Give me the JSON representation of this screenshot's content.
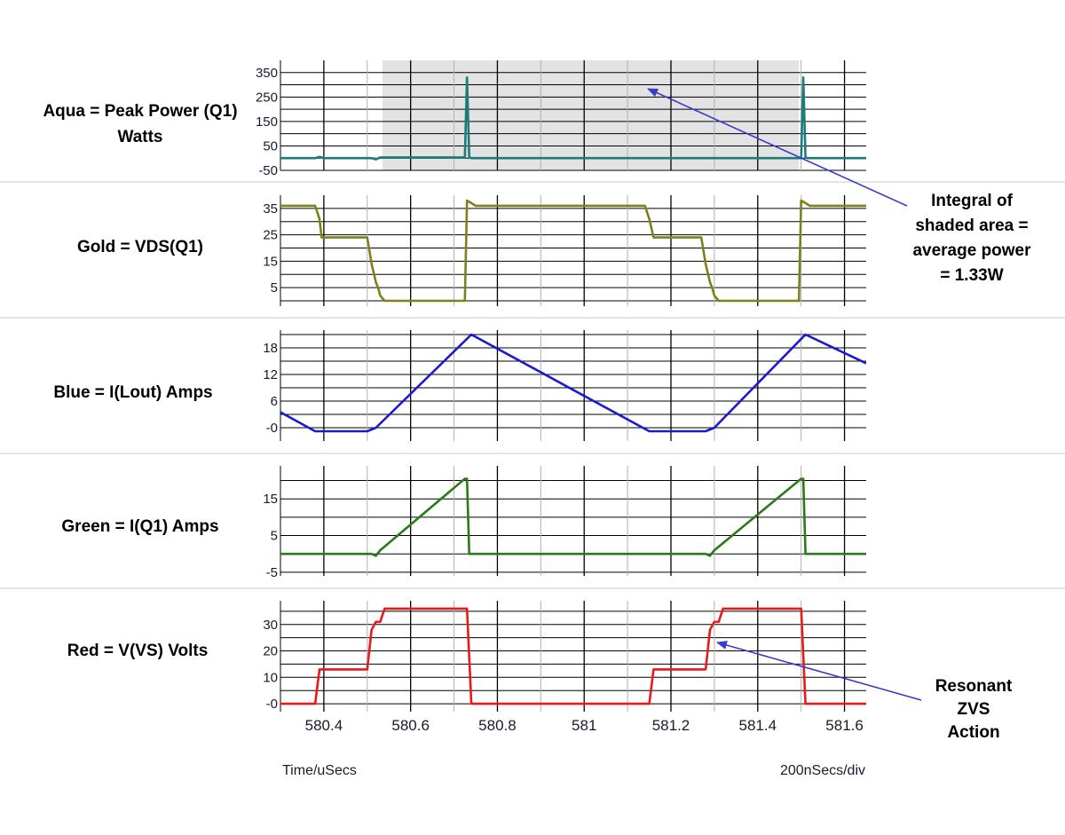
{
  "chart_data": {
    "type": "line",
    "x_range": [
      580.3,
      581.65
    ],
    "x_ticks": [
      "580.4",
      "580.6",
      "580.8",
      "581",
      "581.2",
      "581.4",
      "581.6"
    ],
    "x_tick_values": [
      580.4,
      580.6,
      580.8,
      581.0,
      581.2,
      581.4,
      581.6
    ],
    "x_minor_gridlines": [
      580.3,
      580.5,
      580.7,
      580.9,
      581.1,
      581.3,
      581.5
    ],
    "xlabel": "Time/uSecs",
    "scale_label": "200nSecs/div",
    "panels": [
      {
        "label_lines": [
          "Aqua = Peak Power (Q1)",
          "Watts"
        ],
        "color": "#1e7b7b",
        "ylim": [
          -50,
          400
        ],
        "y_ticks": [
          "350",
          "250",
          "150",
          "50",
          "-50"
        ],
        "y_tick_values": [
          350,
          250,
          150,
          50,
          -50
        ],
        "y_gridlines": [
          350,
          300,
          250,
          200,
          150,
          100,
          50,
          0,
          -50
        ],
        "shaded_x_range": [
          580.535,
          581.495
        ],
        "shaded_color": "#e3e3e3",
        "series": [
          {
            "x": [
              580.3,
              580.38,
              580.39,
              580.4,
              580.51,
              580.52,
              580.53,
              580.725,
              580.73,
              580.735,
              580.74,
              581.15,
              581.5,
              581.505,
              581.51,
              581.515,
              581.65
            ],
            "y": [
              0,
              0,
              5,
              0,
              0,
              -5,
              3,
              3,
              330,
              3,
              0,
              0,
              0,
              330,
              3,
              0,
              0
            ]
          }
        ]
      },
      {
        "label_lines": [
          "Gold = VDS(Q1)"
        ],
        "color": "#80801a",
        "ylim": [
          -2,
          40
        ],
        "y_ticks": [
          "35",
          "25",
          "15",
          "5"
        ],
        "y_tick_values": [
          35,
          25,
          15,
          5
        ],
        "y_gridlines": [
          35,
          30,
          25,
          20,
          15,
          10,
          5,
          0
        ],
        "series": [
          {
            "x": [
              580.3,
              580.38,
              580.39,
              580.395,
              580.4,
              580.5,
              580.51,
              580.52,
              580.525,
              580.53,
              580.54,
              580.725,
              580.73,
              580.74,
              580.75,
              581.14,
              581.15,
              581.16,
              581.17,
              581.27,
              581.28,
              581.29,
              581.295,
              581.3,
              581.31,
              581.495,
              581.5,
              581.51,
              581.52,
              581.65
            ],
            "y": [
              36,
              36,
              31,
              24,
              24,
              24,
              14,
              7,
              5,
              2,
              0,
              0,
              38,
              37,
              36,
              36,
              31,
              24,
              24,
              24,
              14,
              7,
              5,
              2,
              0,
              0,
              38,
              37,
              36,
              36
            ]
          }
        ]
      },
      {
        "label_lines": [
          "Blue = I(Lout) Amps"
        ],
        "color": "#1a1ad0",
        "ylim": [
          -3,
          22
        ],
        "y_ticks": [
          "18",
          "12",
          "6",
          "-0"
        ],
        "y_tick_values": [
          18,
          12,
          6,
          0
        ],
        "y_gridlines": [
          21,
          18,
          15,
          12,
          9,
          6,
          3,
          0
        ],
        "series": [
          {
            "x": [
              580.3,
              580.38,
              580.4,
              580.5,
              580.52,
              580.74,
              581.15,
              581.17,
              581.28,
              581.3,
              581.51,
              581.65
            ],
            "y": [
              3.5,
              -0.8,
              -0.8,
              -0.8,
              0,
              21,
              -0.8,
              -0.8,
              -0.8,
              0,
              21,
              14.5
            ]
          }
        ]
      },
      {
        "label_lines": [
          "Green = I(Q1) Amps"
        ],
        "color": "#2a7a1a",
        "ylim": [
          -6,
          24
        ],
        "y_ticks": [
          "15",
          "5",
          "-5"
        ],
        "y_tick_values": [
          15,
          5,
          -5
        ],
        "y_gridlines": [
          20,
          15,
          10,
          5,
          0,
          -5
        ],
        "series": [
          {
            "x": [
              580.3,
              580.51,
              580.52,
              580.53,
              580.725,
              580.73,
              580.735,
              580.74,
              581.28,
              581.29,
              581.3,
              581.5,
              581.505,
              581.51,
              581.65
            ],
            "y": [
              0,
              0,
              -0.5,
              1,
              20.5,
              20.5,
              0,
              0,
              0,
              -0.5,
              1,
              20.5,
              20.5,
              0,
              0
            ]
          }
        ]
      },
      {
        "label_lines": [
          "Red = V(VS) Volts"
        ],
        "color": "#e81a1a",
        "ylim": [
          -3,
          39
        ],
        "y_ticks": [
          "30",
          "20",
          "10",
          "-0"
        ],
        "y_tick_values": [
          30,
          20,
          10,
          0
        ],
        "y_gridlines": [
          35,
          30,
          25,
          20,
          15,
          10,
          5,
          0
        ],
        "series": [
          {
            "x": [
              580.3,
              580.38,
              580.39,
              580.4,
              580.5,
              580.51,
              580.52,
              580.53,
              580.54,
              580.73,
              580.74,
              581.15,
              581.16,
              581.17,
              581.28,
              581.29,
              581.3,
              581.31,
              581.32,
              581.5,
              581.51,
              581.65
            ],
            "y": [
              0,
              0,
              13,
              13,
              13,
              28,
              31,
              31,
              36,
              36,
              0,
              0,
              13,
              13,
              13,
              28,
              31,
              31,
              36,
              36,
              0,
              0
            ]
          }
        ]
      }
    ],
    "annotations": [
      {
        "lines": [
          "Integral of",
          "shaded area =",
          "average power",
          "= 1.33W"
        ]
      },
      {
        "lines": [
          "Resonant",
          "ZVS",
          "Action"
        ]
      }
    ],
    "arrow_color": "#3b3bc8"
  }
}
